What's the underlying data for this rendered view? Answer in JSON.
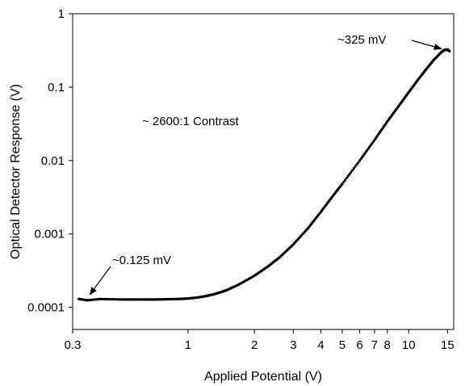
{
  "chart_data": {
    "type": "scatter",
    "title": "",
    "xlabel": "Applied Potential (V)",
    "ylabel": "Optical Detector Response (V)",
    "x_scale": "log",
    "y_scale": "log",
    "xlim": [
      0.3,
      16
    ],
    "ylim": [
      5e-05,
      1
    ],
    "x_ticks": [
      {
        "value": 0.3,
        "label": "0.3"
      },
      {
        "value": 1,
        "label": "1"
      },
      {
        "value": 2,
        "label": "2"
      },
      {
        "value": 3,
        "label": "3"
      },
      {
        "value": 4,
        "label": "4"
      },
      {
        "value": 5,
        "label": "5"
      },
      {
        "value": 6,
        "label": "6"
      },
      {
        "value": 7,
        "label": "7"
      },
      {
        "value": 8,
        "label": "8"
      },
      {
        "value": 10,
        "label": "10"
      },
      {
        "value": 15,
        "label": "15"
      }
    ],
    "y_ticks": [
      {
        "value": 0.0001,
        "label": "0.0001"
      },
      {
        "value": 0.001,
        "label": "0.001"
      },
      {
        "value": 0.01,
        "label": "0.01"
      },
      {
        "value": 0.1,
        "label": "0.1"
      },
      {
        "value": 1,
        "label": "1"
      }
    ],
    "grid": false,
    "legend": "none",
    "series": [
      {
        "color": "#000000",
        "x": [
          0.32,
          0.35,
          0.4,
          0.5,
          0.6,
          0.7,
          0.8,
          0.9,
          1.0,
          1.1,
          1.2,
          1.3,
          1.4,
          1.5,
          1.7,
          2.0,
          2.3,
          2.6,
          3.0,
          3.5,
          4.0,
          4.5,
          5.0,
          6.0,
          7.0,
          8.0,
          9.0,
          10.0,
          11.0,
          12.0,
          13.0,
          14.0,
          14.5,
          15.0,
          15.3
        ],
        "y": [
          0.00013,
          0.000125,
          0.00013,
          0.000128,
          0.000128,
          0.000128,
          0.000129,
          0.00013,
          0.000132,
          0.000136,
          0.000142,
          0.00015,
          0.00016,
          0.000172,
          0.000205,
          0.00027,
          0.00036,
          0.00048,
          0.00072,
          0.0012,
          0.002,
          0.0032,
          0.0048,
          0.01,
          0.019,
          0.034,
          0.055,
          0.085,
          0.125,
          0.175,
          0.235,
          0.295,
          0.32,
          0.325,
          0.31
        ]
      }
    ],
    "annotations": [
      {
        "text": "~325 mV",
        "x": 14.8,
        "y": 0.325
      },
      {
        "text": "~0.125 mV",
        "x": 0.35,
        "y": 0.000125
      },
      {
        "text": "~ 2600:1 Contrast",
        "x": 0.62,
        "y": 0.05
      }
    ]
  }
}
